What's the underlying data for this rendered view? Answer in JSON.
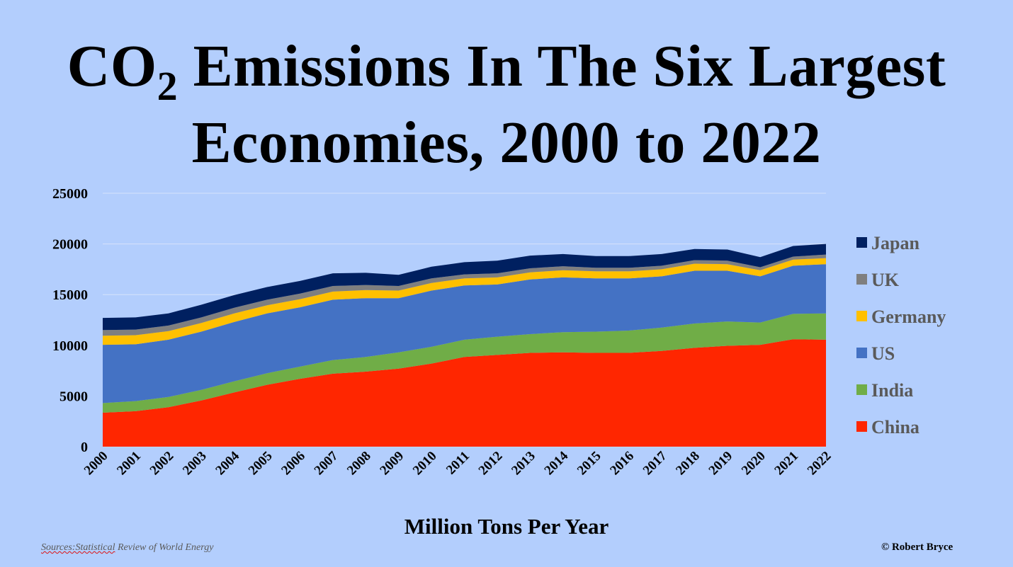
{
  "title": {
    "prefix": "CO",
    "subscript": "2",
    "line1_rest": " Emissions In The Six Largest",
    "line2": "Economies, 2000 to 2022"
  },
  "xlabel": "Million Tons Per Year",
  "source": {
    "underlined": "Sources:Statistical",
    "rest": " Review of World Energy"
  },
  "copyright": "© Robert Bryce",
  "chart_data": {
    "type": "area",
    "stacked": true,
    "x": [
      "2000",
      "2001",
      "2002",
      "2003",
      "2004",
      "2005",
      "2006",
      "2007",
      "2008",
      "2009",
      "2010",
      "2011",
      "2012",
      "2013",
      "2014",
      "2015",
      "2016",
      "2017",
      "2018",
      "2019",
      "2020",
      "2021",
      "2022"
    ],
    "ylim": [
      0,
      25000
    ],
    "yticks": [
      "0",
      "5000",
      "10000",
      "15000",
      "20000",
      "25000"
    ],
    "grid": true,
    "legend_position": "right",
    "series": [
      {
        "name": "China",
        "color": "#ff2600",
        "values": [
          3350,
          3500,
          3900,
          4550,
          5350,
          6100,
          6700,
          7200,
          7400,
          7700,
          8200,
          8850,
          9050,
          9250,
          9300,
          9250,
          9250,
          9450,
          9750,
          9950,
          10050,
          10600,
          10550
        ]
      },
      {
        "name": "India",
        "color": "#70ad47",
        "values": [
          950,
          1000,
          1000,
          1050,
          1100,
          1150,
          1200,
          1350,
          1450,
          1600,
          1650,
          1700,
          1800,
          1850,
          2000,
          2100,
          2200,
          2300,
          2400,
          2400,
          2200,
          2500,
          2600
        ]
      },
      {
        "name": "US",
        "color": "#4472c4",
        "values": [
          5750,
          5600,
          5650,
          5750,
          5850,
          5900,
          5850,
          5950,
          5800,
          5350,
          5550,
          5350,
          5150,
          5400,
          5400,
          5250,
          5150,
          5050,
          5200,
          5000,
          4550,
          4750,
          4850
        ]
      },
      {
        "name": "Germany",
        "color": "#ffc000",
        "values": [
          900,
          900,
          850,
          850,
          850,
          800,
          800,
          800,
          800,
          750,
          750,
          700,
          700,
          700,
          700,
          700,
          700,
          700,
          700,
          650,
          600,
          600,
          600
        ]
      },
      {
        "name": "UK",
        "color": "#7f7f7f",
        "values": [
          550,
          550,
          550,
          550,
          550,
          550,
          550,
          550,
          500,
          450,
          450,
          400,
          400,
          400,
          400,
          350,
          350,
          350,
          350,
          350,
          300,
          300,
          350
        ]
      },
      {
        "name": "Japan",
        "color": "#002060",
        "values": [
          1200,
          1200,
          1200,
          1250,
          1250,
          1250,
          1250,
          1250,
          1200,
          1100,
          1150,
          1200,
          1250,
          1250,
          1200,
          1150,
          1150,
          1150,
          1100,
          1100,
          1000,
          1050,
          1050
        ]
      }
    ],
    "legend_order": [
      "Japan",
      "UK",
      "Germany",
      "US",
      "India",
      "China"
    ]
  }
}
